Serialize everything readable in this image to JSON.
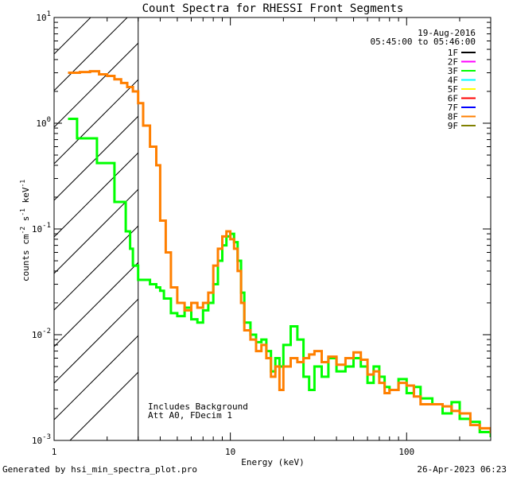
{
  "chart_data": {
    "type": "line",
    "title": "Count Spectra for RHESSI Front Segments",
    "xlabel": "Energy (keV)",
    "ylabel_parts": [
      "counts cm",
      "-2",
      " s",
      "-1",
      " keV",
      "-1"
    ],
    "xscale": "log",
    "yscale": "log",
    "xlim": [
      1,
      300
    ],
    "ylim": [
      0.001,
      10
    ],
    "x_ticks": [
      {
        "value": 1,
        "label": "1"
      },
      {
        "value": 10,
        "label": "10"
      },
      {
        "value": 100,
        "label": "100"
      }
    ],
    "y_ticks": [
      {
        "value": 10,
        "base": "10",
        "exp": "1"
      },
      {
        "value": 1,
        "base": "10",
        "exp": "0"
      },
      {
        "value": 0.1,
        "base": "10",
        "exp": "-1"
      },
      {
        "value": 0.01,
        "base": "10",
        "exp": "-2"
      },
      {
        "value": 0.001,
        "base": "10",
        "exp": "-3"
      }
    ],
    "hatch_region": {
      "x_from": 1,
      "x_to": 3
    },
    "date": "19-Aug-2016",
    "time_range": "05:45:00 to 05:46:00",
    "legend": [
      {
        "label": "1F",
        "color": "#000000"
      },
      {
        "label": "2F",
        "color": "#ff00ff"
      },
      {
        "label": "3F",
        "color": "#00ff00"
      },
      {
        "label": "4F",
        "color": "#00ffff"
      },
      {
        "label": "5F",
        "color": "#ffff00"
      },
      {
        "label": "6F",
        "color": "#ff0000"
      },
      {
        "label": "7F",
        "color": "#0000ff"
      },
      {
        "label": "8F",
        "color": "#ff7f00"
      },
      {
        "label": "9F",
        "color": "#808000"
      }
    ],
    "annotations": [
      "Includes Background",
      "Att A0, FDecim 1"
    ],
    "series": [
      {
        "name": "3F",
        "color": "#00ff00",
        "points": [
          [
            1.2,
            1.1
          ],
          [
            1.35,
            0.72
          ],
          [
            1.6,
            0.72
          ],
          [
            1.75,
            0.42
          ],
          [
            2.0,
            0.42
          ],
          [
            2.2,
            0.18
          ],
          [
            2.4,
            0.18
          ],
          [
            2.55,
            0.095
          ],
          [
            2.7,
            0.065
          ],
          [
            2.8,
            0.045
          ],
          [
            3.0,
            0.033
          ],
          [
            3.5,
            0.03
          ],
          [
            3.8,
            0.028
          ],
          [
            4.0,
            0.026
          ],
          [
            4.2,
            0.022
          ],
          [
            4.6,
            0.016
          ],
          [
            5.0,
            0.015
          ],
          [
            5.5,
            0.018
          ],
          [
            6.0,
            0.014
          ],
          [
            6.5,
            0.013
          ],
          [
            7.0,
            0.017
          ],
          [
            7.5,
            0.02
          ],
          [
            8.0,
            0.03
          ],
          [
            8.5,
            0.05
          ],
          [
            9.0,
            0.07
          ],
          [
            9.5,
            0.085
          ],
          [
            10.0,
            0.09
          ],
          [
            10.5,
            0.075
          ],
          [
            11.0,
            0.05
          ],
          [
            11.5,
            0.025
          ],
          [
            12.0,
            0.013
          ],
          [
            13.0,
            0.01
          ],
          [
            14.0,
            0.0085
          ],
          [
            15.0,
            0.009
          ],
          [
            16.0,
            0.007
          ],
          [
            17.0,
            0.0045
          ],
          [
            18.0,
            0.006
          ],
          [
            19.0,
            0.005
          ],
          [
            20.0,
            0.008
          ],
          [
            22.0,
            0.012
          ],
          [
            24.0,
            0.009
          ],
          [
            26.0,
            0.004
          ],
          [
            28.0,
            0.003
          ],
          [
            30.0,
            0.005
          ],
          [
            33.0,
            0.004
          ],
          [
            36.0,
            0.006
          ],
          [
            40.0,
            0.0045
          ],
          [
            45.0,
            0.005
          ],
          [
            50.0,
            0.006
          ],
          [
            55.0,
            0.005
          ],
          [
            60.0,
            0.0035
          ],
          [
            65.0,
            0.005
          ],
          [
            70.0,
            0.004
          ],
          [
            75.0,
            0.0032
          ],
          [
            80.0,
            0.003
          ],
          [
            90.0,
            0.0038
          ],
          [
            100.0,
            0.0028
          ],
          [
            110.0,
            0.0032
          ],
          [
            120.0,
            0.0025
          ],
          [
            140.0,
            0.0022
          ],
          [
            160.0,
            0.0018
          ],
          [
            180.0,
            0.0023
          ],
          [
            200.0,
            0.0016
          ],
          [
            230.0,
            0.0015
          ],
          [
            260.0,
            0.0012
          ],
          [
            300.0,
            0.0011
          ]
        ]
      },
      {
        "name": "8F",
        "color": "#ff7f00",
        "points": [
          [
            1.2,
            3.0
          ],
          [
            1.4,
            3.05
          ],
          [
            1.6,
            3.1
          ],
          [
            1.8,
            2.9
          ],
          [
            2.0,
            2.8
          ],
          [
            2.2,
            2.6
          ],
          [
            2.4,
            2.4
          ],
          [
            2.6,
            2.2
          ],
          [
            2.8,
            2.0
          ],
          [
            3.0,
            1.55
          ],
          [
            3.2,
            0.95
          ],
          [
            3.5,
            0.6
          ],
          [
            3.8,
            0.4
          ],
          [
            4.0,
            0.12
          ],
          [
            4.3,
            0.06
          ],
          [
            4.6,
            0.028
          ],
          [
            5.0,
            0.02
          ],
          [
            5.5,
            0.017
          ],
          [
            6.0,
            0.02
          ],
          [
            6.5,
            0.018
          ],
          [
            7.0,
            0.02
          ],
          [
            7.5,
            0.025
          ],
          [
            8.0,
            0.045
          ],
          [
            8.5,
            0.065
          ],
          [
            9.0,
            0.085
          ],
          [
            9.5,
            0.095
          ],
          [
            10.0,
            0.08
          ],
          [
            10.5,
            0.065
          ],
          [
            11.0,
            0.04
          ],
          [
            11.5,
            0.02
          ],
          [
            12.0,
            0.011
          ],
          [
            13.0,
            0.009
          ],
          [
            14.0,
            0.007
          ],
          [
            15.0,
            0.008
          ],
          [
            16.0,
            0.006
          ],
          [
            17.0,
            0.004
          ],
          [
            18.0,
            0.005
          ],
          [
            19.0,
            0.003
          ],
          [
            20.0,
            0.005
          ],
          [
            22.0,
            0.006
          ],
          [
            24.0,
            0.0055
          ],
          [
            26.0,
            0.006
          ],
          [
            28.0,
            0.0065
          ],
          [
            30.0,
            0.007
          ],
          [
            33.0,
            0.0055
          ],
          [
            36.0,
            0.0062
          ],
          [
            40.0,
            0.0052
          ],
          [
            45.0,
            0.006
          ],
          [
            50.0,
            0.0068
          ],
          [
            55.0,
            0.0058
          ],
          [
            60.0,
            0.0042
          ],
          [
            65.0,
            0.0045
          ],
          [
            70.0,
            0.0035
          ],
          [
            75.0,
            0.0028
          ],
          [
            80.0,
            0.003
          ],
          [
            90.0,
            0.0035
          ],
          [
            100.0,
            0.0033
          ],
          [
            110.0,
            0.0026
          ],
          [
            120.0,
            0.0022
          ],
          [
            140.0,
            0.0022
          ],
          [
            160.0,
            0.0021
          ],
          [
            180.0,
            0.0019
          ],
          [
            200.0,
            0.0018
          ],
          [
            230.0,
            0.0014
          ],
          [
            260.0,
            0.0013
          ],
          [
            300.0,
            0.0012
          ]
        ]
      }
    ]
  },
  "footer": {
    "generated_by": "Generated by hsi_min_spectra_plot.pro",
    "timestamp": "26-Apr-2023 06:23"
  }
}
